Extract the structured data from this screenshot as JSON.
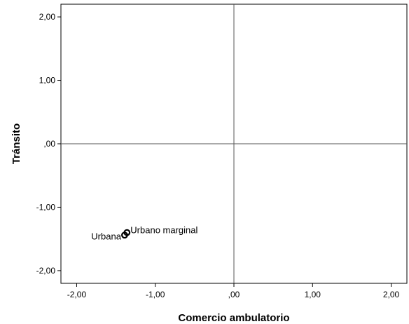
{
  "chart_data": {
    "type": "scatter",
    "xlabel": "Comercio ambulatorio",
    "ylabel": "Tránsito",
    "xlim": [
      -2.2,
      2.2
    ],
    "ylim": [
      -2.2,
      2.2
    ],
    "x_ticks": [
      {
        "value": -2,
        "label": "-2,00"
      },
      {
        "value": -1,
        "label": "-1,00"
      },
      {
        "value": 0,
        "label": ",00"
      },
      {
        "value": 1,
        "label": "1,00"
      },
      {
        "value": 2,
        "label": "2,00"
      }
    ],
    "y_ticks": [
      {
        "value": 2,
        "label": "2,00"
      },
      {
        "value": 1,
        "label": "1,00"
      },
      {
        "value": 0,
        "label": ",00"
      },
      {
        "value": -1,
        "label": "-1,00"
      },
      {
        "value": -2,
        "label": "-2,00"
      }
    ],
    "reference_lines": {
      "x": 0,
      "y": 0
    },
    "points": [
      {
        "label": "Urbana",
        "x": -1.39,
        "y": -1.44,
        "label_side": "left"
      },
      {
        "label": "Urbano marginal",
        "x": -1.36,
        "y": -1.4,
        "label_side": "right"
      }
    ],
    "grid": false,
    "legend": "none"
  }
}
